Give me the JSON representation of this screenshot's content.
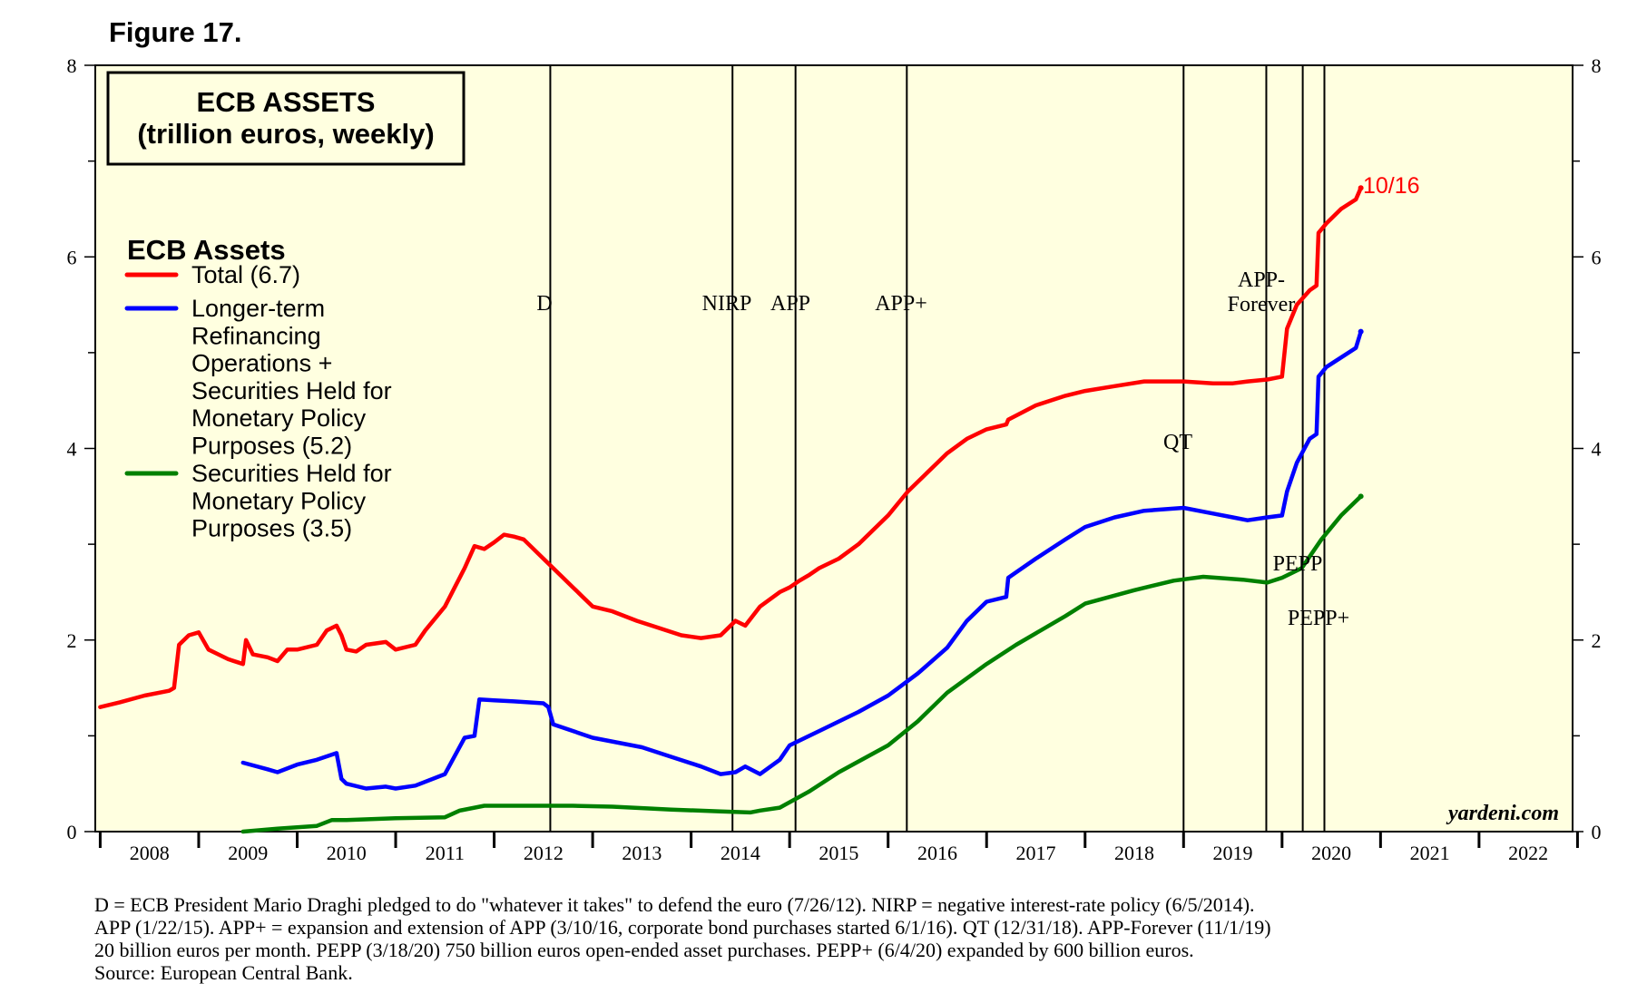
{
  "figure_label": "Figure 17.",
  "chart_data": {
    "type": "line",
    "title": "ECB ASSETS",
    "subtitle": "(trillion euros, weekly)",
    "ylim": [
      0,
      8
    ],
    "y_ticks": [
      "0",
      "2",
      "4",
      "6",
      "8"
    ],
    "x_range": [
      2007.95,
      2022.95
    ],
    "x_tick_labels": [
      "2008",
      "2009",
      "2010",
      "2011",
      "2012",
      "2013",
      "2014",
      "2015",
      "2016",
      "2017",
      "2018",
      "2019",
      "2020",
      "2021",
      "2022"
    ],
    "legend_title": "ECB Assets",
    "legend": [
      {
        "color": "#ff0000",
        "lines": [
          "Total (6.7)"
        ]
      },
      {
        "color": "#0000ff",
        "lines": [
          "Longer-term",
          "Refinancing",
          "Operations +",
          "Securities Held for",
          "Monetary Policy",
          "Purposes (5.2)"
        ]
      },
      {
        "color": "#008000",
        "lines": [
          "Securities Held for",
          "Monetary Policy",
          "Purposes (3.5)"
        ]
      }
    ],
    "series": [
      {
        "name": "Total",
        "color": "#ff0000",
        "x": [
          2008.0,
          2008.2,
          2008.45,
          2008.7,
          2008.75,
          2008.8,
          2008.9,
          2009.0,
          2009.1,
          2009.2,
          2009.3,
          2009.45,
          2009.48,
          2009.55,
          2009.7,
          2009.8,
          2009.9,
          2010.0,
          2010.2,
          2010.3,
          2010.4,
          2010.45,
          2010.5,
          2010.6,
          2010.7,
          2010.9,
          2011.0,
          2011.2,
          2011.3,
          2011.5,
          2011.6,
          2011.7,
          2011.8,
          2011.9,
          2012.0,
          2012.1,
          2012.2,
          2012.3,
          2012.5,
          2012.8,
          2012.9,
          2013.0,
          2013.2,
          2013.45,
          2013.6,
          2013.9,
          2014.1,
          2014.3,
          2014.45,
          2014.55,
          2014.7,
          2014.9,
          2015.0,
          2015.1,
          2015.2,
          2015.3,
          2015.5,
          2015.7,
          2016.0,
          2016.2,
          2016.4,
          2016.6,
          2016.8,
          2017.0,
          2017.2,
          2017.22,
          2017.5,
          2017.8,
          2018.0,
          2018.3,
          2018.6,
          2019.0,
          2019.3,
          2019.5,
          2019.65,
          2019.85,
          2020.0,
          2020.05,
          2020.15,
          2020.28,
          2020.35,
          2020.37,
          2020.45,
          2020.6,
          2020.75,
          2020.8
        ],
        "values": [
          1.3,
          1.35,
          1.42,
          1.47,
          1.5,
          1.95,
          2.05,
          2.08,
          1.9,
          1.85,
          1.8,
          1.75,
          2.0,
          1.85,
          1.82,
          1.78,
          1.9,
          1.9,
          1.95,
          2.1,
          2.15,
          2.05,
          1.9,
          1.88,
          1.95,
          1.98,
          1.9,
          1.95,
          2.1,
          2.35,
          2.55,
          2.75,
          2.98,
          2.95,
          3.02,
          3.1,
          3.08,
          3.05,
          2.85,
          2.55,
          2.45,
          2.35,
          2.3,
          2.2,
          2.15,
          2.05,
          2.02,
          2.05,
          2.2,
          2.15,
          2.35,
          2.5,
          2.55,
          2.62,
          2.68,
          2.75,
          2.85,
          3.0,
          3.3,
          3.55,
          3.75,
          3.95,
          4.1,
          4.2,
          4.25,
          4.3,
          4.45,
          4.55,
          4.6,
          4.65,
          4.7,
          4.7,
          4.68,
          4.68,
          4.7,
          4.72,
          4.75,
          5.25,
          5.5,
          5.65,
          5.7,
          6.25,
          6.35,
          6.5,
          6.6,
          6.72
        ]
      },
      {
        "name": "Longer-term Refinancing Operations + Securities Held for Monetary Policy Purposes",
        "color": "#0000ff",
        "x": [
          2009.45,
          2009.7,
          2009.8,
          2010.0,
          2010.2,
          2010.4,
          2010.45,
          2010.5,
          2010.7,
          2010.9,
          2011.0,
          2011.2,
          2011.5,
          2011.7,
          2011.8,
          2011.85,
          2012.0,
          2012.2,
          2012.5,
          2012.55,
          2012.6,
          2013.0,
          2013.5,
          2013.8,
          2014.1,
          2014.3,
          2014.45,
          2014.55,
          2014.7,
          2014.9,
          2015.0,
          2015.3,
          2015.7,
          2016.0,
          2016.3,
          2016.6,
          2016.8,
          2017.0,
          2017.2,
          2017.22,
          2017.5,
          2017.8,
          2018.0,
          2018.3,
          2018.6,
          2019.0,
          2019.3,
          2019.5,
          2019.65,
          2019.85,
          2020.0,
          2020.05,
          2020.15,
          2020.28,
          2020.35,
          2020.37,
          2020.45,
          2020.6,
          2020.75,
          2020.8
        ],
        "values": [
          0.72,
          0.65,
          0.62,
          0.7,
          0.75,
          0.82,
          0.55,
          0.5,
          0.45,
          0.47,
          0.45,
          0.48,
          0.6,
          0.98,
          1.0,
          1.38,
          1.37,
          1.36,
          1.34,
          1.3,
          1.12,
          0.98,
          0.88,
          0.78,
          0.68,
          0.6,
          0.62,
          0.68,
          0.6,
          0.75,
          0.9,
          1.05,
          1.25,
          1.42,
          1.65,
          1.92,
          2.2,
          2.4,
          2.45,
          2.65,
          2.85,
          3.05,
          3.18,
          3.28,
          3.35,
          3.38,
          3.32,
          3.28,
          3.25,
          3.28,
          3.3,
          3.55,
          3.85,
          4.1,
          4.15,
          4.75,
          4.85,
          4.95,
          5.05,
          5.22
        ]
      },
      {
        "name": "Securities Held for Monetary Policy Purposes",
        "color": "#008000",
        "x": [
          2009.45,
          2009.8,
          2010.2,
          2010.35,
          2010.5,
          2011.0,
          2011.5,
          2011.65,
          2011.9,
          2012.3,
          2012.8,
          2013.2,
          2013.8,
          2014.3,
          2014.6,
          2014.7,
          2014.9,
          2015.2,
          2015.5,
          2016.0,
          2016.3,
          2016.6,
          2017.0,
          2017.3,
          2017.8,
          2018.0,
          2018.5,
          2018.9,
          2019.2,
          2019.6,
          2019.85,
          2020.0,
          2020.2,
          2020.4,
          2020.6,
          2020.8
        ],
        "values": [
          0.0,
          0.03,
          0.06,
          0.12,
          0.12,
          0.14,
          0.15,
          0.22,
          0.27,
          0.27,
          0.27,
          0.26,
          0.23,
          0.21,
          0.2,
          0.22,
          0.25,
          0.42,
          0.62,
          0.9,
          1.15,
          1.45,
          1.75,
          1.95,
          2.25,
          2.38,
          2.52,
          2.62,
          2.66,
          2.63,
          2.6,
          2.65,
          2.75,
          3.05,
          3.3,
          3.5
        ]
      }
    ],
    "events": [
      {
        "label": "D",
        "x": 2012.57
      },
      {
        "label": "NIRP",
        "x": 2014.42
      },
      {
        "label": "APP",
        "x": 2015.06
      },
      {
        "label": "APP+",
        "x": 2016.19
      },
      {
        "label": "QT",
        "x": 2019.0
      },
      {
        "label": "APP-Forever",
        "x": 2019.84
      },
      {
        "label": "PEPP",
        "x": 2020.21
      },
      {
        "label": "PEPP+",
        "x": 2020.43
      }
    ],
    "endpoint_label": "10/16",
    "watermark": "yardeni.com"
  },
  "event_labels": {
    "d": "D",
    "nirp": "NIRP",
    "app": "APP",
    "app_plus": "APP+",
    "qt": "QT",
    "app_forever_1": "APP-",
    "app_forever_2": "Forever",
    "pepp": "PEPP",
    "pepp_plus": "PEPP+"
  },
  "footnote": {
    "line1": "D = ECB President Mario Draghi pledged to do \"whatever it takes\" to defend the euro (7/26/12). NIRP = negative interest-rate policy (6/5/2014).",
    "line2": "APP (1/22/15). APP+ = expansion and extension of APP (3/10/16, corporate bond purchases started 6/1/16). QT (12/31/18). APP-Forever (11/1/19)",
    "line3": "20 billion euros per month. PEPP (3/18/20) 750 billion euros open-ended asset purchases. PEPP+ (6/4/20) expanded by 600 billion euros.",
    "line4": "Source: European Central Bank."
  }
}
